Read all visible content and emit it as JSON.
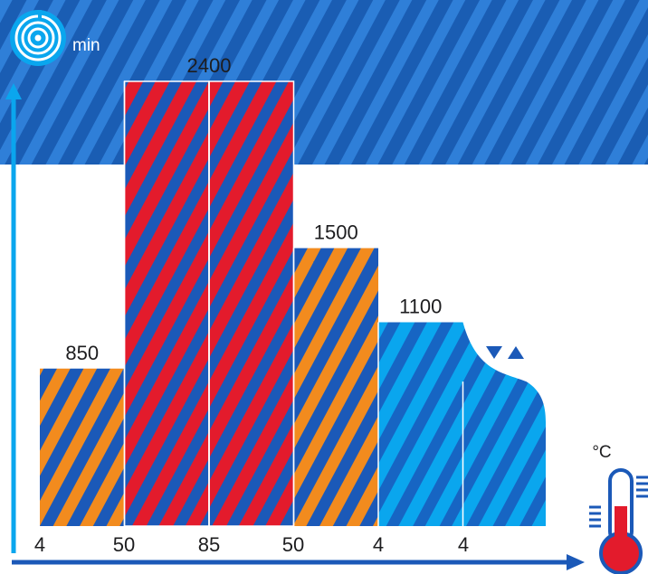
{
  "chart_data": {
    "type": "bar",
    "y_unit": "min",
    "x_unit": "°C",
    "values": [
      850,
      2400,
      2400,
      1500,
      1100,
      780
    ],
    "value_labels": [
      "850",
      "2400",
      "",
      "1500",
      "1100",
      ""
    ],
    "x_boundaries": [
      "4",
      "50",
      "85",
      "50",
      "4",
      "4"
    ],
    "ylim": [
      0,
      2700
    ],
    "segment_styles": [
      "orange",
      "red",
      "red",
      "orange",
      "light",
      "wave"
    ],
    "last_segment_trend_icon": "down-up-triangles-icon",
    "colors": {
      "top_band": "#1a5db3",
      "top_stripe": "#2f7fd8",
      "stripe_dark": "#1b59b8",
      "orange": "#f28b1e",
      "red": "#e31b2c",
      "light_blue": "#0aa6ee",
      "light_stripe": "#1765c3",
      "axis_y": "#0aa6ee",
      "axis_x": "#1b59b8",
      "thermo_red": "#e31b2c"
    }
  }
}
